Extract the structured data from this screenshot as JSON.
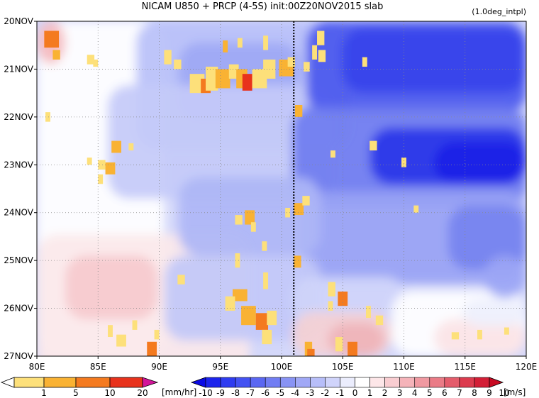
{
  "chart_data": {
    "type": "heatmap",
    "title": "NICAM   U850 + PRCP (4-5S) init:00Z20NOV2015 slab",
    "subtitle": "(1.0deg_intpl)",
    "x_ticks": [
      "80E",
      "85E",
      "90E",
      "95E",
      "100E",
      "105E",
      "110E",
      "115E",
      "120E"
    ],
    "y_ticks": [
      "20NOV",
      "21NOV",
      "22NOV",
      "23NOV",
      "24NOV",
      "25NOV",
      "26NOV",
      "27NOV"
    ],
    "xlim": [
      80,
      120
    ],
    "ylim_days": [
      "20NOV",
      "27NOV"
    ],
    "vertical_marker_lon": 101,
    "grid": true,
    "precip_colorbar": {
      "labels": [
        "1",
        "5",
        "10",
        "20"
      ],
      "unit": "[mm/hr]",
      "colors": [
        "#ffffff",
        "#fde07a",
        "#f9b233",
        "#f47a1f",
        "#e8321c",
        "#d3159a"
      ]
    },
    "wind_colorbar": {
      "labels": [
        "-10",
        "-9",
        "-8",
        "-7",
        "-6",
        "-5",
        "-4",
        "-3",
        "-2",
        "-1",
        "0",
        "1",
        "2",
        "3",
        "4",
        "5",
        "6",
        "7",
        "8",
        "9",
        "10"
      ],
      "unit": "[m/s]",
      "colors": [
        "#0a0ae6",
        "#1c24ec",
        "#2e3cf0",
        "#4352f2",
        "#5a67f2",
        "#717df3",
        "#8893f4",
        "#a0a8f6",
        "#b7bef9",
        "#d0d4fb",
        "#ebedfd",
        "#ffffff",
        "#fde6e8",
        "#f9cdd1",
        "#f5b3b9",
        "#f099a1",
        "#ea7b86",
        "#e45c6b",
        "#dc3b4e",
        "#d31e36",
        "#c80a22"
      ]
    }
  }
}
